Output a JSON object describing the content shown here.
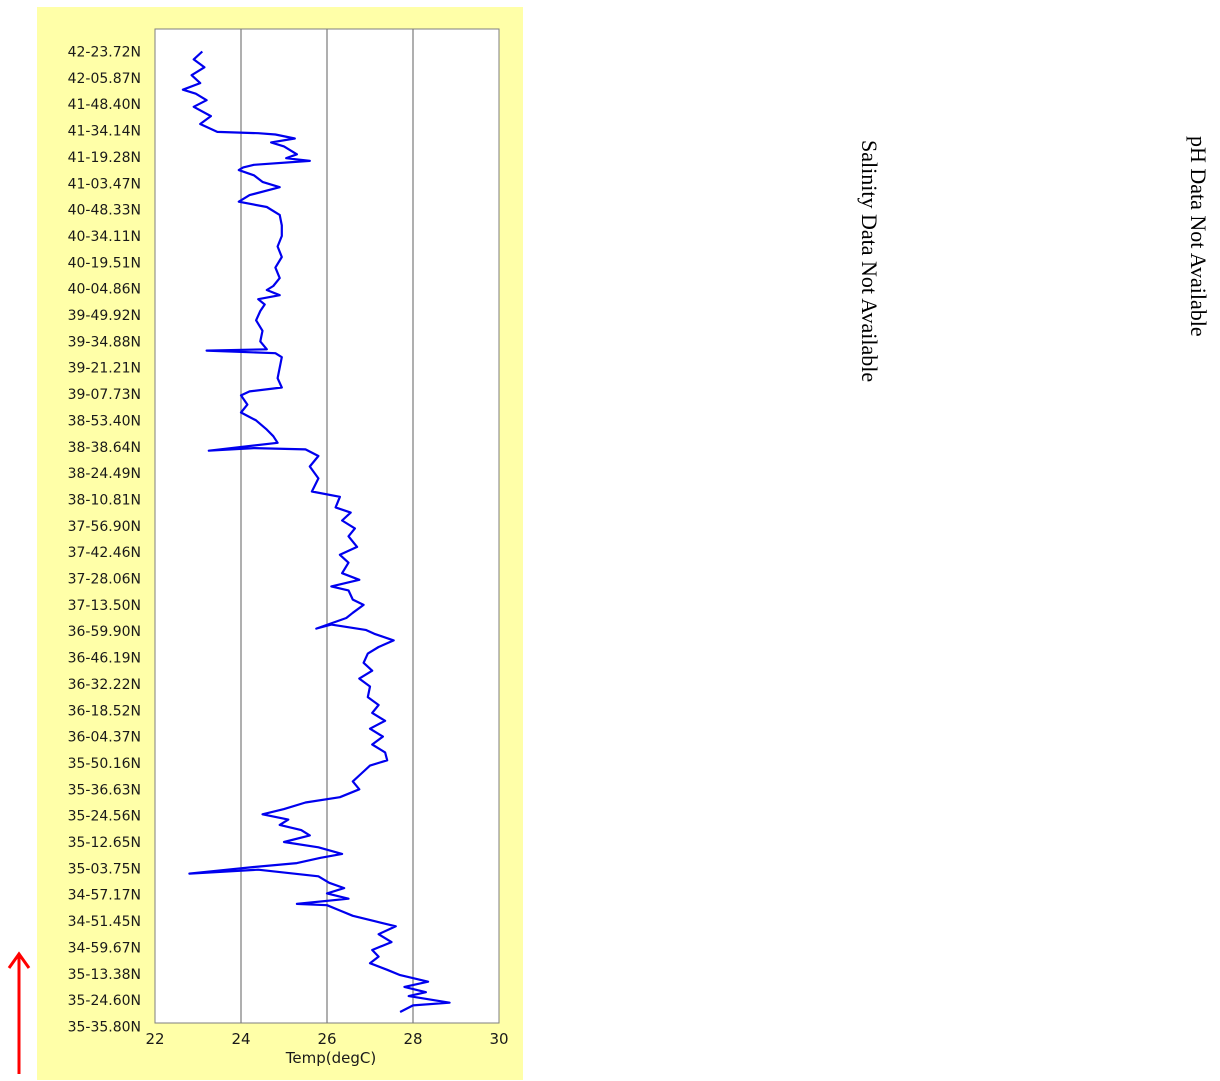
{
  "chart_data": {
    "type": "line",
    "orientation": "vertical-track",
    "xlabel": "Temp(degC)",
    "xlim": [
      22,
      30
    ],
    "x_ticks": [
      22,
      24,
      26,
      28,
      30
    ],
    "grid": "vertical",
    "line_color": "#0000ee",
    "y_tick_labels": [
      "42-23.72N",
      "42-05.87N",
      "41-48.40N",
      "41-34.14N",
      "41-19.28N",
      "41-03.47N",
      "40-48.33N",
      "40-34.11N",
      "40-19.51N",
      "40-04.86N",
      "39-49.92N",
      "39-34.88N",
      "39-21.21N",
      "39-07.73N",
      "38-53.40N",
      "38-38.64N",
      "38-24.49N",
      "38-10.81N",
      "37-56.90N",
      "37-42.46N",
      "37-28.06N",
      "37-13.50N",
      "36-59.90N",
      "36-46.19N",
      "36-32.22N",
      "36-18.52N",
      "36-04.37N",
      "35-50.16N",
      "35-36.63N",
      "35-24.56N",
      "35-12.65N",
      "35-03.75N",
      "34-57.17N",
      "34-51.45N",
      "34-59.67N",
      "35-13.38N",
      "35-24.60N",
      "35-35.80N"
    ],
    "series": [
      {
        "values": [
          [
            23.1,
            0
          ],
          [
            22.9,
            0.3
          ],
          [
            23.15,
            0.6
          ],
          [
            22.85,
            0.9
          ],
          [
            23.05,
            1.2
          ],
          [
            22.65,
            1.45
          ],
          [
            22.95,
            1.6
          ],
          [
            23.2,
            1.85
          ],
          [
            22.9,
            2.1
          ],
          [
            23.3,
            2.45
          ],
          [
            23.05,
            2.75
          ],
          [
            23.45,
            3.05
          ],
          [
            24.4,
            3.1
          ],
          [
            24.8,
            3.15
          ],
          [
            25.25,
            3.3
          ],
          [
            24.7,
            3.45
          ],
          [
            25.0,
            3.6
          ],
          [
            25.3,
            3.9
          ],
          [
            25.05,
            4.05
          ],
          [
            25.6,
            4.15
          ],
          [
            24.3,
            4.3
          ],
          [
            24.05,
            4.4
          ],
          [
            23.95,
            4.5
          ],
          [
            24.3,
            4.7
          ],
          [
            24.5,
            4.95
          ],
          [
            24.9,
            5.15
          ],
          [
            24.2,
            5.45
          ],
          [
            23.95,
            5.7
          ],
          [
            24.6,
            5.9
          ],
          [
            24.9,
            6.2
          ],
          [
            24.95,
            6.6
          ],
          [
            24.95,
            7.0
          ],
          [
            24.85,
            7.4
          ],
          [
            24.95,
            7.8
          ],
          [
            24.8,
            8.2
          ],
          [
            24.9,
            8.6
          ],
          [
            24.75,
            8.9
          ],
          [
            24.6,
            9.05
          ],
          [
            24.9,
            9.25
          ],
          [
            24.4,
            9.4
          ],
          [
            24.55,
            9.6
          ],
          [
            24.45,
            9.85
          ],
          [
            24.35,
            10.2
          ],
          [
            24.5,
            10.6
          ],
          [
            24.45,
            11.0
          ],
          [
            24.6,
            11.3
          ],
          [
            23.2,
            11.35
          ],
          [
            24.8,
            11.45
          ],
          [
            24.95,
            11.6
          ],
          [
            24.9,
            12.0
          ],
          [
            24.85,
            12.4
          ],
          [
            24.95,
            12.75
          ],
          [
            24.2,
            12.9
          ],
          [
            24.0,
            13.05
          ],
          [
            24.15,
            13.4
          ],
          [
            24.0,
            13.7
          ],
          [
            24.35,
            14.0
          ],
          [
            24.6,
            14.35
          ],
          [
            24.75,
            14.6
          ],
          [
            24.85,
            14.85
          ],
          [
            23.25,
            15.15
          ],
          [
            24.3,
            15.05
          ],
          [
            25.5,
            15.1
          ],
          [
            25.8,
            15.35
          ],
          [
            25.6,
            15.75
          ],
          [
            25.8,
            16.2
          ],
          [
            25.65,
            16.7
          ],
          [
            26.3,
            16.9
          ],
          [
            26.2,
            17.3
          ],
          [
            26.55,
            17.5
          ],
          [
            26.35,
            17.8
          ],
          [
            26.65,
            18.1
          ],
          [
            26.5,
            18.4
          ],
          [
            26.7,
            18.8
          ],
          [
            26.3,
            19.1
          ],
          [
            26.5,
            19.4
          ],
          [
            26.35,
            19.8
          ],
          [
            26.75,
            20.05
          ],
          [
            26.1,
            20.3
          ],
          [
            26.5,
            20.45
          ],
          [
            26.6,
            20.8
          ],
          [
            26.85,
            21.0
          ],
          [
            26.6,
            21.3
          ],
          [
            26.45,
            21.5
          ],
          [
            25.75,
            21.9
          ],
          [
            26.1,
            21.75
          ],
          [
            26.9,
            21.95
          ],
          [
            27.1,
            22.1
          ],
          [
            27.55,
            22.35
          ],
          [
            27.2,
            22.6
          ],
          [
            26.95,
            22.85
          ],
          [
            26.85,
            23.2
          ],
          [
            27.05,
            23.5
          ],
          [
            26.75,
            23.8
          ],
          [
            27.0,
            24.1
          ],
          [
            26.95,
            24.5
          ],
          [
            27.2,
            24.8
          ],
          [
            27.05,
            25.1
          ],
          [
            27.35,
            25.4
          ],
          [
            27.0,
            25.7
          ],
          [
            27.3,
            26.0
          ],
          [
            27.05,
            26.3
          ],
          [
            27.35,
            26.6
          ],
          [
            27.4,
            26.9
          ],
          [
            27.0,
            27.1
          ],
          [
            26.8,
            27.4
          ],
          [
            26.6,
            27.7
          ],
          [
            26.75,
            28.0
          ],
          [
            26.3,
            28.3
          ],
          [
            25.5,
            28.5
          ],
          [
            25.0,
            28.75
          ],
          [
            24.5,
            28.95
          ],
          [
            25.1,
            29.15
          ],
          [
            24.9,
            29.35
          ],
          [
            25.4,
            29.55
          ],
          [
            25.6,
            29.75
          ],
          [
            25.0,
            30.0
          ],
          [
            25.8,
            30.2
          ],
          [
            26.35,
            30.45
          ],
          [
            25.85,
            30.6
          ],
          [
            25.3,
            30.8
          ],
          [
            24.3,
            30.95
          ],
          [
            22.8,
            31.2
          ],
          [
            24.4,
            31.05
          ],
          [
            25.8,
            31.3
          ],
          [
            26.05,
            31.55
          ],
          [
            26.4,
            31.75
          ],
          [
            26.0,
            31.95
          ],
          [
            26.5,
            32.15
          ],
          [
            25.3,
            32.35
          ],
          [
            26.0,
            32.4
          ],
          [
            26.3,
            32.6
          ],
          [
            26.6,
            32.8
          ],
          [
            27.1,
            33.0
          ],
          [
            27.6,
            33.2
          ],
          [
            27.2,
            33.5
          ],
          [
            27.5,
            33.8
          ],
          [
            27.05,
            34.1
          ],
          [
            27.2,
            34.35
          ],
          [
            27.0,
            34.6
          ],
          [
            27.4,
            34.85
          ],
          [
            27.7,
            35.05
          ],
          [
            28.35,
            35.3
          ],
          [
            27.8,
            35.5
          ],
          [
            28.3,
            35.7
          ],
          [
            27.9,
            35.85
          ],
          [
            28.85,
            36.1
          ],
          [
            28.0,
            36.2
          ],
          [
            27.7,
            36.45
          ]
        ]
      }
    ]
  },
  "side_notes": {
    "salinity": "Salinity Data Not Available",
    "ph": "pH Data Not Available"
  },
  "direction_arrow": {
    "icon": "up-arrow-icon",
    "color": "#ff0000"
  }
}
